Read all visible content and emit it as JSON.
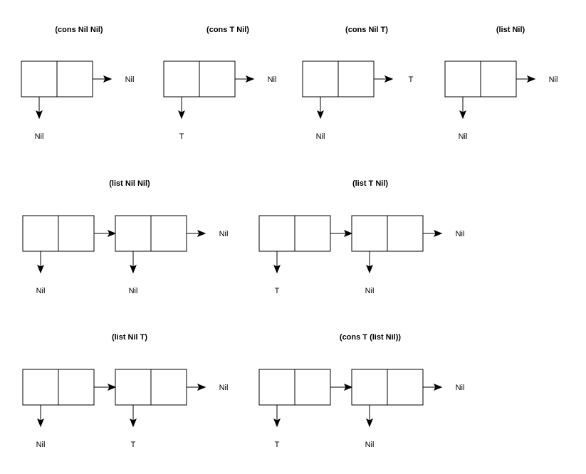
{
  "diagrams": [
    {
      "title": "(cons Nil Nil)",
      "cells": [
        {
          "car": "Nil",
          "cdr_target": null
        }
      ],
      "tail": "Nil"
    },
    {
      "title": "(cons T Nil)",
      "cells": [
        {
          "car": "T",
          "cdr_target": null
        }
      ],
      "tail": "Nil"
    },
    {
      "title": "(cons Nil T)",
      "cells": [
        {
          "car": "Nil",
          "cdr_target": null
        }
      ],
      "tail": "T"
    },
    {
      "title": "(list Nil)",
      "cells": [
        {
          "car": "Nil",
          "cdr_target": null
        }
      ],
      "tail": "Nil"
    },
    {
      "title": "(list Nil Nil)",
      "cells": [
        {
          "car": "Nil",
          "cdr_target": 1
        },
        {
          "car": "Nil",
          "cdr_target": null
        }
      ],
      "tail": "Nil"
    },
    {
      "title": "(list T Nil)",
      "cells": [
        {
          "car": "T",
          "cdr_target": 1
        },
        {
          "car": "Nil",
          "cdr_target": null
        }
      ],
      "tail": "Nil"
    },
    {
      "title": "(list Nil T)",
      "cells": [
        {
          "car": "Nil",
          "cdr_target": 1
        },
        {
          "car": "T",
          "cdr_target": null
        }
      ],
      "tail": "Nil"
    },
    {
      "title": "(cons T (list Nil))",
      "cells": [
        {
          "car": "T",
          "cdr_target": 1
        },
        {
          "car": "Nil",
          "cdr_target": null
        }
      ],
      "tail": "Nil"
    }
  ],
  "colors": {
    "stroke": "#000000",
    "background": "#ffffff"
  }
}
